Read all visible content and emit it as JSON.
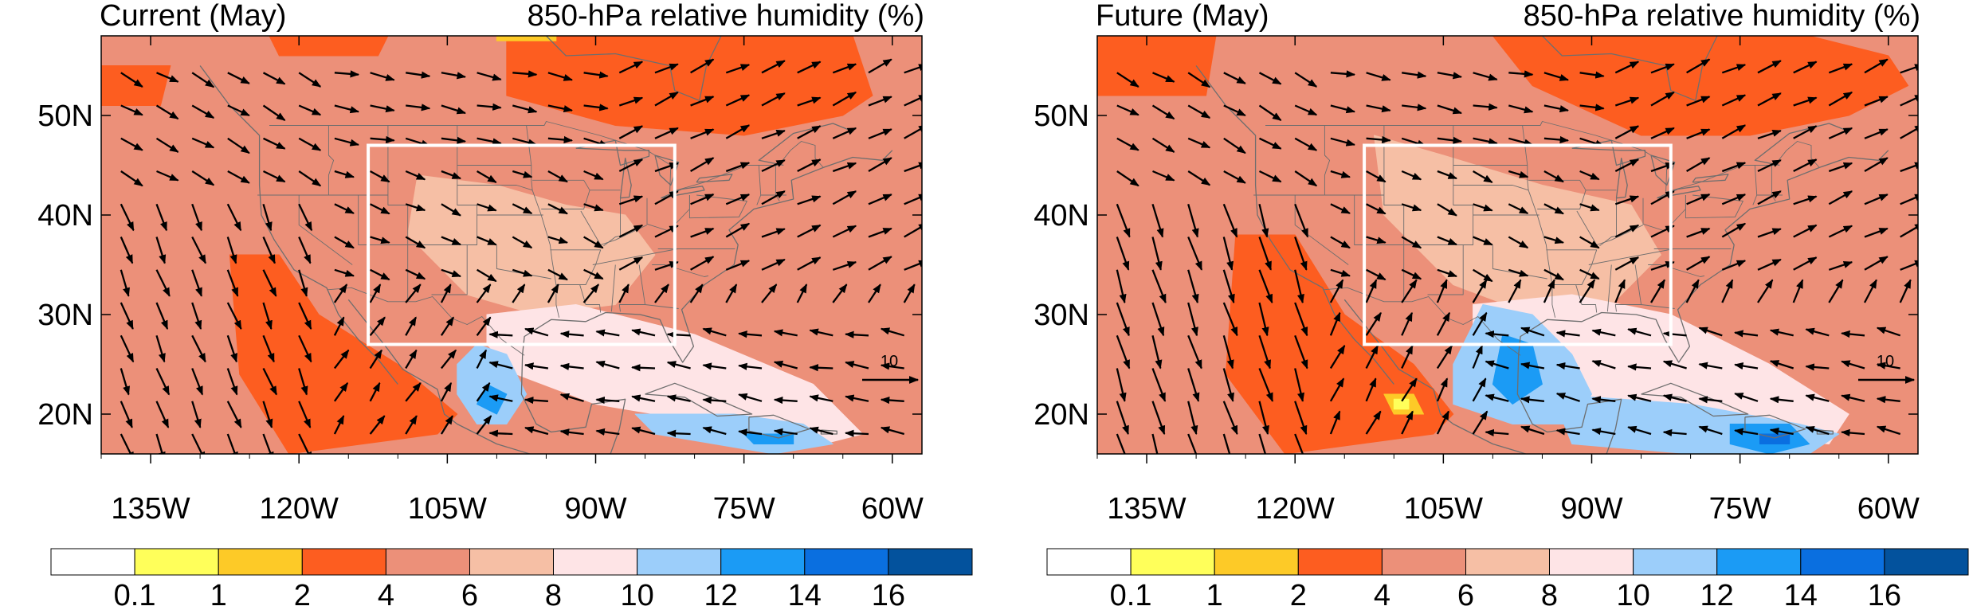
{
  "colors": {
    "level_colors": [
      "#ffffff",
      "#ffff5a",
      "#fdca27",
      "#fd5d20",
      "#ec9079",
      "#f6bfa5",
      "#fee4e6",
      "#9ccefa",
      "#1b9bf5",
      "#0a6fe0",
      "#03529d"
    ],
    "region_box": "#ffffff",
    "vector": "#000000",
    "coast": "#6e6e6e"
  },
  "colorbar": {
    "labels": [
      "0.1",
      "1",
      "2",
      "4",
      "6",
      "8",
      "10",
      "12",
      "14",
      "16"
    ]
  },
  "reference_vector": {
    "label": "10",
    "magnitude": 10
  },
  "panels": [
    {
      "id": "current",
      "title_left": "Current (May)",
      "title_right": "850-hPa relative humidity (%)"
    },
    {
      "id": "future",
      "title_left": "Future (May)",
      "title_right": "850-hPa relative humidity (%)"
    }
  ],
  "chart_data": [
    {
      "type": "filled-contour-with-wind-vectors",
      "panel": "current",
      "title": "Current (May)",
      "variable": "850-hPa relative humidity (%)",
      "lon_range": [
        -140,
        -57
      ],
      "lat_range": [
        16,
        58
      ],
      "x_ticks": [
        -135,
        -120,
        -105,
        -90,
        -75,
        -60
      ],
      "x_tick_labels": [
        "135W",
        "120W",
        "105W",
        "90W",
        "75W",
        "60W"
      ],
      "y_ticks": [
        20,
        30,
        40,
        50
      ],
      "y_tick_labels": [
        "20N",
        "30N",
        "40N",
        "50N"
      ],
      "contour_levels": [
        0.1,
        1,
        2,
        4,
        6,
        8,
        10,
        12,
        14,
        16
      ],
      "region_box": {
        "lon": [
          -113,
          -82
        ],
        "lat": [
          27,
          47
        ]
      },
      "fields": [
        {
          "level_index": 4,
          "lons": [
            -142,
            -56,
            -56,
            -142
          ],
          "lats": [
            16,
            16,
            59,
            59
          ]
        },
        {
          "level_index": 3,
          "lons": [
            -99,
            -64,
            -62,
            -65,
            -75,
            -88,
            -99
          ],
          "lats": [
            58,
            58,
            52,
            50,
            48,
            49,
            52
          ]
        },
        {
          "level_index": 3,
          "lons": [
            -127,
            -122,
            -118,
            -110,
            -104,
            -106,
            -121,
            -126
          ],
          "lats": [
            36,
            36,
            30,
            25,
            20,
            18,
            16,
            24
          ]
        },
        {
          "level_index": 3,
          "lons": [
            -140,
            -133,
            -134,
            -140
          ],
          "lats": [
            55,
            55,
            51,
            51
          ]
        },
        {
          "level_index": 3,
          "lons": [
            -123,
            -111,
            -112,
            -122
          ],
          "lats": [
            58,
            58,
            56,
            56
          ]
        },
        {
          "level_index": 5,
          "lons": [
            -108,
            -100,
            -93,
            -87,
            -84,
            -88,
            -96,
            -103,
            -109
          ],
          "lats": [
            44,
            43,
            41,
            40,
            36,
            31,
            30,
            32,
            38
          ]
        },
        {
          "level_index": 6,
          "lons": [
            -101,
            -92,
            -80,
            -68,
            -63,
            -67,
            -78,
            -90,
            -98,
            -101
          ],
          "lats": [
            30,
            31,
            28,
            23,
            18,
            17,
            19,
            21,
            24,
            27
          ]
        },
        {
          "level_index": 7,
          "lons": [
            -102,
            -99,
            -97,
            -99,
            -102,
            -104,
            -104
          ],
          "lats": [
            27,
            26,
            22,
            19,
            19,
            22,
            25
          ]
        },
        {
          "level_index": 7,
          "lons": [
            -86,
            -76,
            -69,
            -66,
            -72,
            -84
          ],
          "lats": [
            20,
            20,
            19,
            17,
            16,
            18
          ]
        },
        {
          "level_index": 8,
          "lons": [
            -101,
            -99,
            -100,
            -102
          ],
          "lats": [
            23,
            22,
            20,
            21
          ]
        },
        {
          "level_index": 8,
          "lons": [
            -75,
            -70,
            -70,
            -74
          ],
          "lats": [
            18,
            18,
            17,
            17
          ]
        },
        {
          "level_index": 2,
          "lons": [
            -100,
            -94,
            -94,
            -100
          ],
          "lats": [
            59,
            59,
            57.5,
            57.5
          ]
        }
      ],
      "wind_vectors": "dense vector field (~4° spacing); northerly flow along the west coast, south-easterly to south-westerly flow over the Gulf of Mexico and eastern US, westerly flow over Canada"
    },
    {
      "type": "filled-contour-with-wind-vectors",
      "panel": "future",
      "title": "Future (May)",
      "variable": "850-hPa relative humidity (%)",
      "lon_range": [
        -140,
        -57
      ],
      "lat_range": [
        16,
        58
      ],
      "x_ticks": [
        -135,
        -120,
        -105,
        -90,
        -75,
        -60
      ],
      "x_tick_labels": [
        "135W",
        "120W",
        "105W",
        "90W",
        "75W",
        "60W"
      ],
      "y_ticks": [
        20,
        30,
        40,
        50
      ],
      "y_tick_labels": [
        "20N",
        "30N",
        "40N",
        "50N"
      ],
      "contour_levels": [
        0.1,
        1,
        2,
        4,
        6,
        8,
        10,
        12,
        14,
        16
      ],
      "region_box": {
        "lon": [
          -113,
          -82
        ],
        "lat": [
          27,
          47
        ]
      },
      "fields": [
        {
          "level_index": 4,
          "lons": [
            -142,
            -56,
            -56,
            -142
          ],
          "lats": [
            16,
            16,
            59,
            59
          ]
        },
        {
          "level_index": 3,
          "lons": [
            -100,
            -68,
            -60,
            -58,
            -64,
            -74,
            -85,
            -96
          ],
          "lats": [
            58,
            58,
            56,
            53,
            50,
            48,
            48,
            53
          ]
        },
        {
          "level_index": 3,
          "lons": [
            -126,
            -120,
            -115,
            -108,
            -104,
            -106,
            -121,
            -127
          ],
          "lats": [
            38,
            38,
            30,
            25,
            20,
            18,
            16,
            24
          ]
        },
        {
          "level_index": 3,
          "lons": [
            -141,
            -128,
            -129,
            -141
          ],
          "lats": [
            58,
            58,
            52,
            52
          ]
        },
        {
          "level_index": 5,
          "lons": [
            -112,
            -105,
            -95,
            -86,
            -83,
            -88,
            -96,
            -104,
            -111
          ],
          "lats": [
            48,
            46,
            43,
            41,
            36,
            31,
            30,
            33,
            40
          ]
        },
        {
          "level_index": 6,
          "lons": [
            -102,
            -92,
            -82,
            -72,
            -64,
            -66,
            -78,
            -90,
            -98,
            -102
          ],
          "lats": [
            31,
            32,
            30,
            25,
            20,
            17,
            18,
            21,
            24,
            28
          ]
        },
        {
          "level_index": 7,
          "lons": [
            -101,
            -96,
            -92,
            -90,
            -92,
            -98,
            -104,
            -104
          ],
          "lats": [
            31,
            30,
            26,
            22,
            19,
            19,
            21,
            25
          ]
        },
        {
          "level_index": 7,
          "lons": [
            -94,
            -80,
            -69,
            -65,
            -68,
            -80,
            -92
          ],
          "lats": [
            22,
            21,
            19,
            18,
            16,
            16,
            17
          ]
        },
        {
          "level_index": 8,
          "lons": [
            -99,
            -96,
            -95,
            -98,
            -100
          ],
          "lats": [
            28,
            27,
            23,
            21,
            23
          ]
        },
        {
          "level_index": 8,
          "lons": [
            -76,
            -70,
            -68,
            -72,
            -76
          ],
          "lats": [
            19,
            19,
            17,
            16,
            17
          ]
        },
        {
          "level_index": 9,
          "lons": [
            -73,
            -70,
            -70,
            -73
          ],
          "lats": [
            18,
            18,
            17,
            17
          ]
        },
        {
          "level_index": 2,
          "lons": [
            -111,
            -108,
            -107,
            -110
          ],
          "lats": [
            22,
            22,
            20,
            20
          ]
        },
        {
          "level_index": 1,
          "lons": [
            -110,
            -108.5,
            -108.5,
            -110
          ],
          "lats": [
            21.5,
            21.5,
            20.5,
            20.5
          ]
        }
      ],
      "wind_vectors": "dense vector field (~4° spacing); similar pattern to current with stronger southerly inflow from the Gulf of Mexico"
    }
  ]
}
